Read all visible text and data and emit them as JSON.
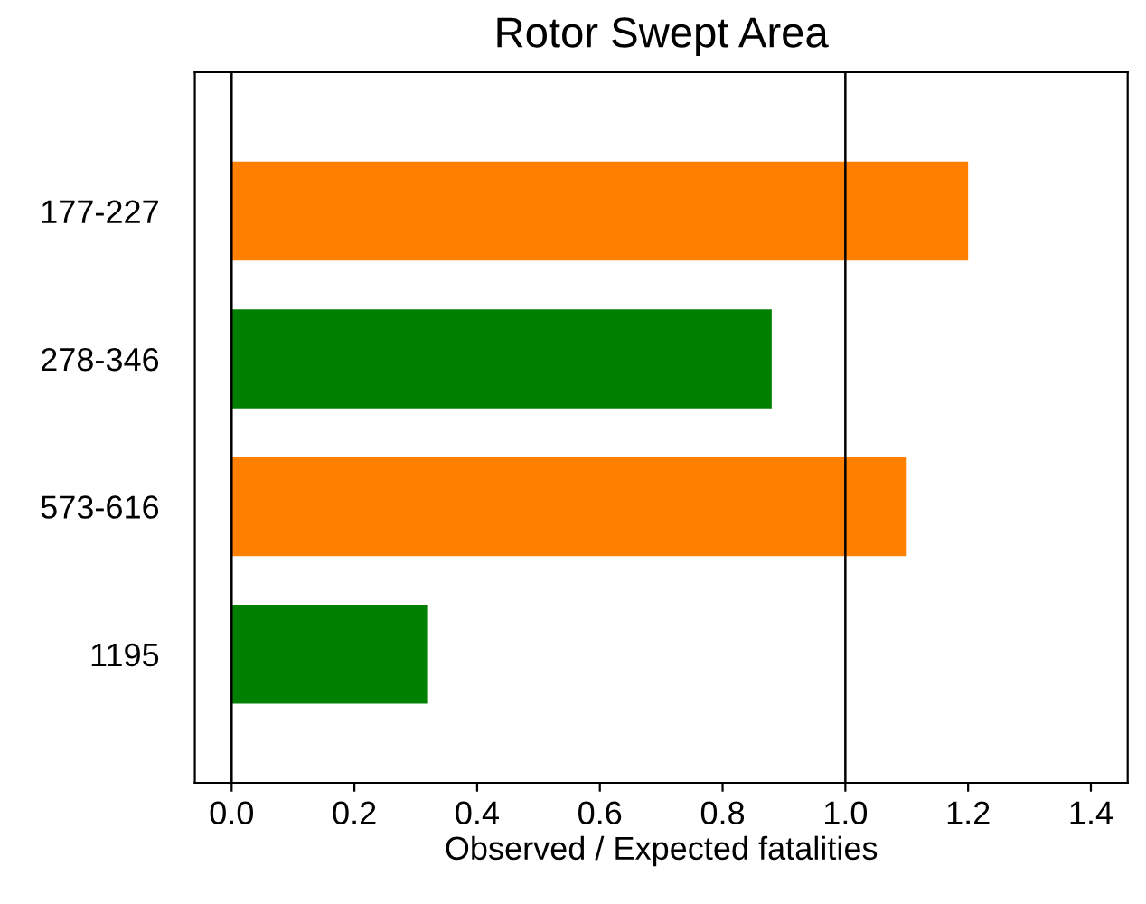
{
  "chart_data": {
    "type": "bar",
    "orientation": "horizontal",
    "title": "Rotor Swept Area",
    "xlabel": "Observed / Expected fatalities",
    "categories": [
      "177-227",
      "278-346",
      "573-616",
      "1195"
    ],
    "values": [
      1.2,
      0.88,
      1.1,
      0.32
    ],
    "colors": [
      "#ff7f00",
      "#008000",
      "#ff7f00",
      "#008000"
    ],
    "xlim": [
      -0.06,
      1.46
    ],
    "xticks": [
      {
        "value": 0,
        "label": "0.0"
      },
      {
        "value": 0.2,
        "label": "0.2"
      },
      {
        "value": 0.4,
        "label": "0.4"
      },
      {
        "value": 0.6,
        "label": "0.6"
      },
      {
        "value": 0.8,
        "label": "0.8"
      },
      {
        "value": 1,
        "label": "1.0"
      },
      {
        "value": 1.2,
        "label": "1.2"
      },
      {
        "value": 1.4,
        "label": "1.4"
      }
    ],
    "ref_lines": [
      {
        "axis": "x",
        "value": 0
      },
      {
        "axis": "x",
        "value": 1
      }
    ],
    "grid": false,
    "legend": false
  }
}
